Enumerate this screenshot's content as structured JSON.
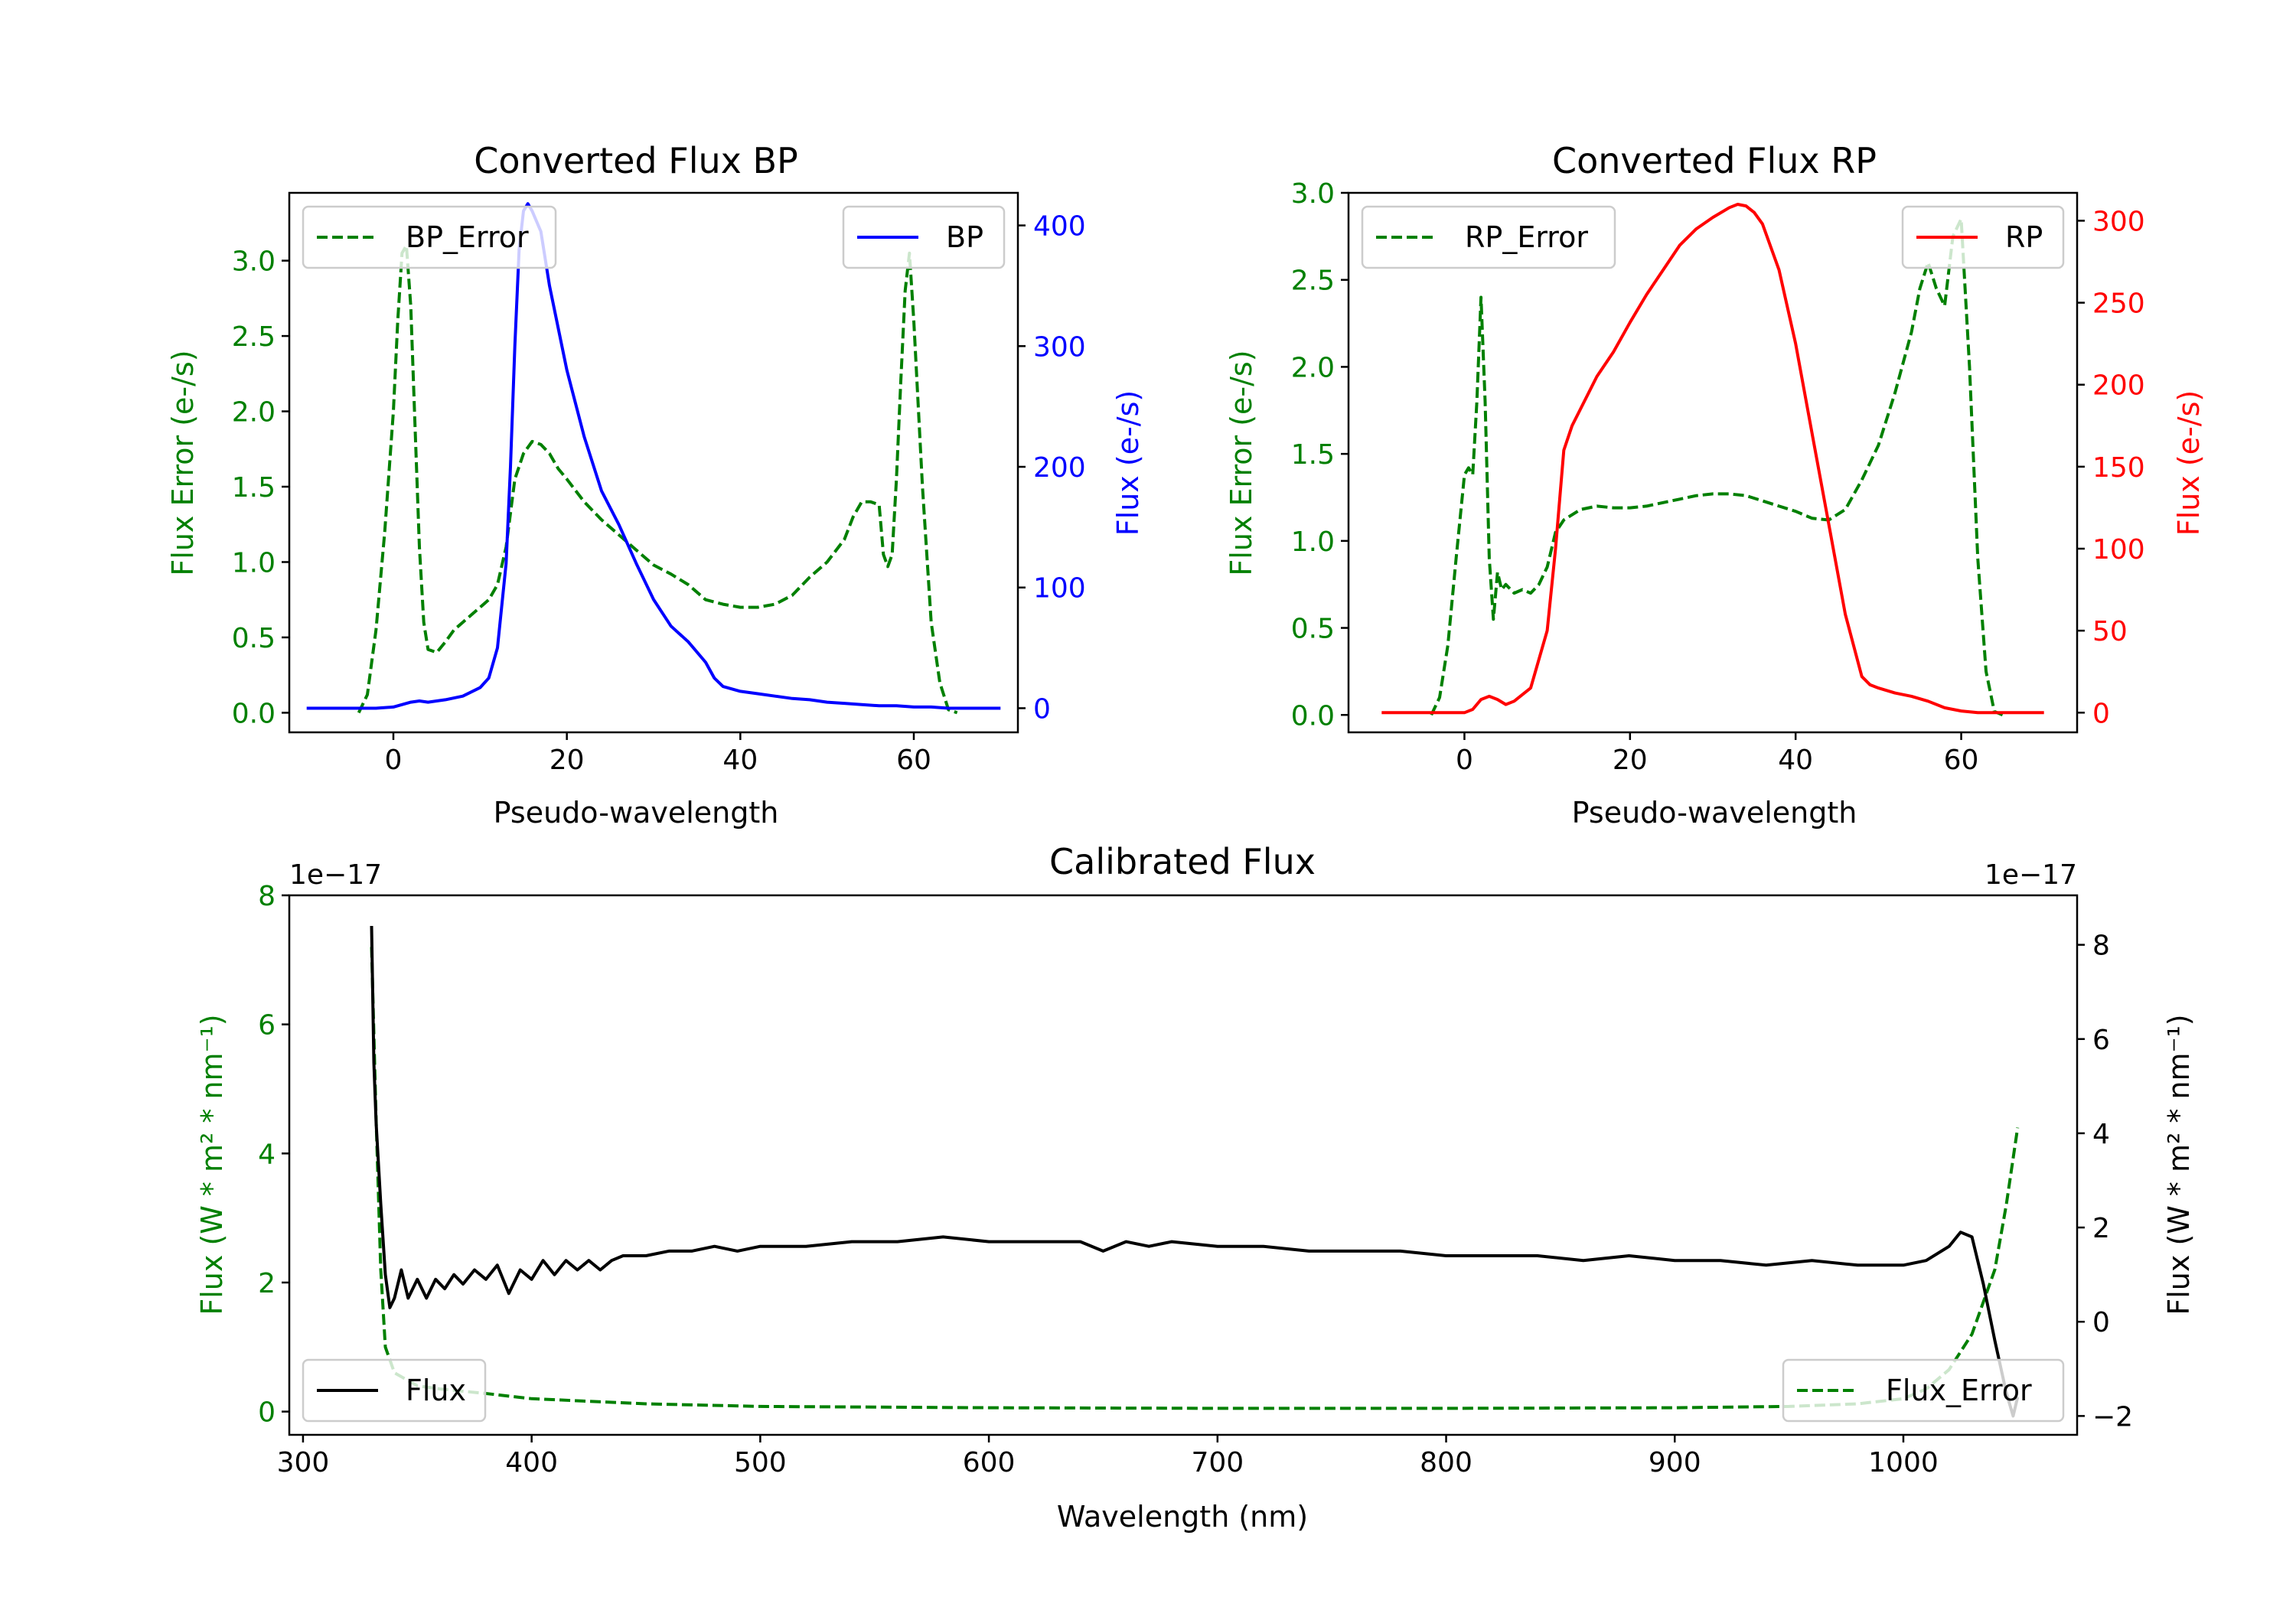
{
  "colors": {
    "bp": "#0000ff",
    "rp": "#ff0000",
    "error": "#008000",
    "flux": "#000000",
    "axis": "#000000"
  },
  "chart_data": [
    {
      "id": "bp",
      "type": "line",
      "title": "Converted Flux BP",
      "xlabel": "Pseudo-wavelength",
      "ylabel_left": "Flux Error (e-/s)",
      "ylabel_right": "Flux (e-/s)",
      "xlim": [
        -12,
        72
      ],
      "ylim_left": [
        -0.13,
        3.45
      ],
      "ylim_right": [
        -20,
        427
      ],
      "xticks": [
        "0",
        "20",
        "40",
        "60"
      ],
      "xtick_values": [
        0,
        20,
        40,
        60
      ],
      "yticks_left": [
        "0.0",
        "0.5",
        "1.0",
        "1.5",
        "2.0",
        "2.5",
        "3.0"
      ],
      "ytick_values_left": [
        0,
        0.5,
        1.0,
        1.5,
        2.0,
        2.5,
        3.0
      ],
      "yticks_right": [
        "0",
        "100",
        "200",
        "300",
        "400"
      ],
      "ytick_values_right": [
        0,
        100,
        200,
        300,
        400
      ],
      "legend_left": "BP_Error",
      "legend_right": "BP",
      "series": [
        {
          "name": "BP_Error",
          "axis": "left",
          "style": "dashed",
          "x": [
            -4,
            -3,
            -2,
            -1,
            0,
            0.5,
            1,
            1.5,
            2,
            2.5,
            3,
            3.5,
            4,
            5,
            6,
            7,
            8,
            9,
            10,
            11,
            12,
            13,
            14,
            15,
            16,
            17,
            18,
            19,
            20,
            22,
            24,
            26,
            28,
            30,
            32,
            34,
            36,
            38,
            40,
            42,
            44,
            46,
            48,
            50,
            52,
            53,
            54,
            55,
            56,
            56.5,
            57,
            57.5,
            58,
            58.5,
            59,
            59.5,
            60,
            61,
            62,
            63,
            64,
            65
          ],
          "y": [
            0.0,
            0.12,
            0.55,
            1.2,
            2.0,
            2.6,
            3.05,
            3.1,
            2.7,
            1.9,
            1.1,
            0.6,
            0.42,
            0.4,
            0.47,
            0.55,
            0.6,
            0.65,
            0.7,
            0.75,
            0.85,
            1.1,
            1.55,
            1.72,
            1.8,
            1.78,
            1.72,
            1.62,
            1.55,
            1.4,
            1.28,
            1.18,
            1.08,
            0.98,
            0.92,
            0.85,
            0.75,
            0.72,
            0.7,
            0.7,
            0.72,
            0.78,
            0.9,
            1.0,
            1.15,
            1.3,
            1.4,
            1.4,
            1.38,
            1.05,
            0.97,
            1.05,
            1.55,
            2.2,
            2.8,
            3.05,
            2.6,
            1.5,
            0.6,
            0.2,
            0.02,
            0.0
          ]
        },
        {
          "name": "BP",
          "axis": "right",
          "style": "solid",
          "x": [
            -10,
            -6,
            -4,
            -2,
            0,
            2,
            3,
            4,
            6,
            8,
            10,
            11,
            12,
            13,
            13.5,
            14,
            14.5,
            15,
            15.5,
            16,
            17,
            18,
            20,
            22,
            24,
            26,
            28,
            30,
            32,
            34,
            36,
            37,
            38,
            40,
            42,
            44,
            46,
            48,
            50,
            52,
            54,
            56,
            58,
            60,
            62,
            64,
            66,
            68,
            70
          ],
          "y": [
            0,
            0,
            0,
            0,
            1,
            5,
            6,
            5,
            7,
            10,
            17,
            25,
            50,
            120,
            200,
            300,
            380,
            412,
            418,
            412,
            395,
            350,
            280,
            225,
            180,
            152,
            120,
            90,
            68,
            55,
            38,
            25,
            18,
            14,
            12,
            10,
            8,
            7,
            5,
            4,
            3,
            2,
            2,
            1,
            1,
            0,
            0,
            0,
            0
          ]
        }
      ]
    },
    {
      "id": "rp",
      "type": "line",
      "title": "Converted Flux RP",
      "xlabel": "Pseudo-wavelength",
      "ylabel_left": "Flux Error (e-/s)",
      "ylabel_right": "Flux (e-/s)",
      "xlim": [
        -14,
        74
      ],
      "ylim_left": [
        -0.1,
        3.0
      ],
      "ylim_right": [
        -12,
        317
      ],
      "xticks": [
        "0",
        "20",
        "40",
        "60"
      ],
      "xtick_values": [
        0,
        20,
        40,
        60
      ],
      "yticks_left": [
        "0.0",
        "0.5",
        "1.0",
        "1.5",
        "2.0",
        "2.5",
        "3.0"
      ],
      "ytick_values_left": [
        0,
        0.5,
        1.0,
        1.5,
        2.0,
        2.5,
        3.0
      ],
      "yticks_right": [
        "0",
        "50",
        "100",
        "150",
        "200",
        "250",
        "300"
      ],
      "ytick_values_right": [
        0,
        50,
        100,
        150,
        200,
        250,
        300
      ],
      "legend_left": "RP_Error",
      "legend_right": "RP",
      "series": [
        {
          "name": "RP_Error",
          "axis": "left",
          "style": "dashed",
          "x": [
            -4,
            -3,
            -2,
            -1,
            0,
            0.5,
            1,
            1.5,
            2,
            2.5,
            3,
            3.5,
            4,
            4.5,
            5,
            6,
            7,
            8,
            9,
            10,
            11,
            12,
            14,
            16,
            18,
            20,
            22,
            24,
            26,
            28,
            30,
            32,
            34,
            36,
            38,
            40,
            42,
            44,
            46,
            48,
            50,
            52,
            54,
            55,
            56,
            57,
            58,
            59,
            60,
            61,
            62,
            63,
            64,
            65
          ],
          "y": [
            0.0,
            0.1,
            0.4,
            0.9,
            1.38,
            1.42,
            1.38,
            1.8,
            2.4,
            1.8,
            0.9,
            0.55,
            0.82,
            0.72,
            0.75,
            0.7,
            0.72,
            0.7,
            0.75,
            0.85,
            1.05,
            1.12,
            1.18,
            1.2,
            1.19,
            1.19,
            1.2,
            1.22,
            1.24,
            1.26,
            1.27,
            1.27,
            1.26,
            1.23,
            1.2,
            1.17,
            1.13,
            1.12,
            1.18,
            1.35,
            1.55,
            1.85,
            2.2,
            2.45,
            2.6,
            2.45,
            2.35,
            2.75,
            2.85,
            2.0,
            0.9,
            0.25,
            0.02,
            0.0
          ]
        },
        {
          "name": "RP",
          "axis": "right",
          "style": "solid",
          "x": [
            -10,
            -6,
            -4,
            -2,
            0,
            1,
            2,
            3,
            4,
            5,
            6,
            8,
            10,
            11,
            12,
            13,
            14,
            16,
            18,
            20,
            22,
            24,
            26,
            28,
            30,
            32,
            33,
            34,
            35,
            36,
            38,
            40,
            42,
            44,
            46,
            48,
            49,
            50,
            52,
            54,
            56,
            58,
            60,
            62,
            64,
            66,
            68,
            70
          ],
          "y": [
            0,
            0,
            0,
            0,
            0,
            2,
            8,
            10,
            8,
            5,
            7,
            15,
            50,
            100,
            160,
            175,
            185,
            205,
            220,
            238,
            255,
            270,
            285,
            295,
            302,
            308,
            310,
            309,
            305,
            298,
            270,
            225,
            170,
            115,
            60,
            22,
            17,
            15,
            12,
            10,
            7,
            3,
            1,
            0,
            0,
            0,
            0,
            0
          ]
        }
      ]
    },
    {
      "id": "calibrated",
      "type": "line",
      "title": "Calibrated Flux",
      "xlabel": "Wavelength (nm)",
      "ylabel_left": "Flux (W * m² * nm⁻¹)",
      "ylabel_right": "Flux (W * m² * nm⁻¹)",
      "offset_left": "1e−17",
      "offset_right": "1e−17",
      "xlim": [
        294,
        1076
      ],
      "ylim_left": [
        -0.36,
        8.0
      ],
      "ylim_right": [
        -2.4,
        9.05
      ],
      "xticks": [
        "300",
        "400",
        "500",
        "600",
        "700",
        "800",
        "900",
        "1000"
      ],
      "xtick_values": [
        300,
        400,
        500,
        600,
        700,
        800,
        900,
        1000
      ],
      "yticks_left": [
        "0",
        "2",
        "4",
        "6",
        "8"
      ],
      "ytick_values_left": [
        0,
        2,
        4,
        6,
        8
      ],
      "yticks_right": [
        "−2",
        "0",
        "2",
        "4",
        "6",
        "8"
      ],
      "ytick_values_right": [
        -2,
        0,
        2,
        4,
        6,
        8
      ],
      "legend_left": "Flux",
      "legend_right": "Flux_Error",
      "series": [
        {
          "name": "Flux_Error",
          "axis": "left",
          "style": "dashed",
          "x": [
            330,
            332,
            334,
            336,
            340,
            350,
            360,
            380,
            400,
            450,
            500,
            600,
            700,
            800,
            900,
            950,
            980,
            1000,
            1010,
            1020,
            1030,
            1040,
            1045,
            1050
          ],
          "y": [
            7.2,
            4.5,
            2.2,
            1.0,
            0.6,
            0.4,
            0.35,
            0.28,
            0.2,
            0.12,
            0.08,
            0.06,
            0.05,
            0.05,
            0.06,
            0.08,
            0.12,
            0.2,
            0.35,
            0.65,
            1.2,
            2.2,
            3.2,
            4.4
          ]
        },
        {
          "name": "Flux",
          "axis": "right",
          "style": "solid",
          "x": [
            330,
            331,
            332,
            334,
            336,
            338,
            340,
            343,
            346,
            350,
            354,
            358,
            362,
            366,
            370,
            375,
            380,
            385,
            390,
            395,
            400,
            405,
            410,
            415,
            420,
            425,
            430,
            435,
            440,
            450,
            460,
            470,
            480,
            490,
            500,
            520,
            540,
            560,
            580,
            600,
            620,
            640,
            650,
            660,
            670,
            680,
            700,
            720,
            740,
            760,
            780,
            800,
            820,
            840,
            860,
            880,
            900,
            920,
            940,
            960,
            980,
            1000,
            1010,
            1020,
            1025,
            1030,
            1035,
            1040,
            1045,
            1048,
            1050
          ],
          "y": [
            8.4,
            5.5,
            4.2,
            2.5,
            1.0,
            0.3,
            0.5,
            1.1,
            0.5,
            0.9,
            0.5,
            0.9,
            0.7,
            1.0,
            0.8,
            1.1,
            0.9,
            1.2,
            0.6,
            1.1,
            0.9,
            1.3,
            1.0,
            1.3,
            1.1,
            1.3,
            1.1,
            1.3,
            1.4,
            1.4,
            1.5,
            1.5,
            1.6,
            1.5,
            1.6,
            1.6,
            1.7,
            1.7,
            1.8,
            1.7,
            1.7,
            1.7,
            1.5,
            1.7,
            1.6,
            1.7,
            1.6,
            1.6,
            1.5,
            1.5,
            1.5,
            1.4,
            1.4,
            1.4,
            1.3,
            1.4,
            1.3,
            1.3,
            1.2,
            1.3,
            1.2,
            1.2,
            1.3,
            1.6,
            1.9,
            1.8,
            0.8,
            -0.4,
            -1.5,
            -2.0,
            -1.6
          ]
        }
      ]
    }
  ]
}
